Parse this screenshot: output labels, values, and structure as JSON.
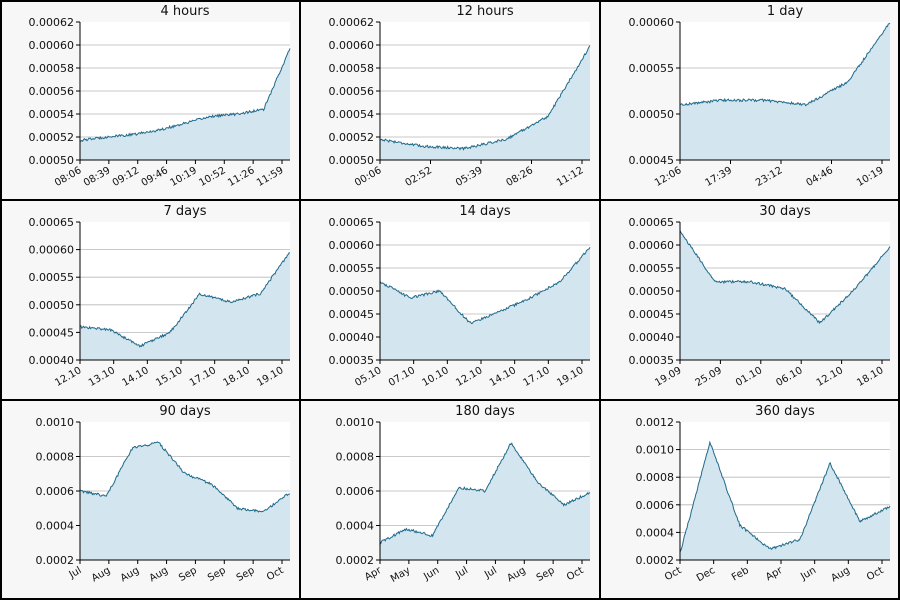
{
  "colors": {
    "line": "#1f6a8a",
    "fill": "#d3e5ee",
    "grid": "#b8b8b8",
    "plot_bg": "#ffffff",
    "panel_bg": "#f7f7f7",
    "frame": "#000000"
  },
  "chart_data": [
    {
      "type": "area",
      "title": "4 hours",
      "ylim": [
        0.0005,
        0.00062
      ],
      "yticks": [
        "0.00050",
        "0.00052",
        "0.00054",
        "0.00056",
        "0.00058",
        "0.00060",
        "0.00062"
      ],
      "xticks": [
        "08:06",
        "08:39",
        "09:12",
        "09:46",
        "10:19",
        "10:52",
        "11:26",
        "11:59"
      ],
      "x": [
        "08:06",
        "08:39",
        "09:12",
        "09:46",
        "10:19",
        "10:52",
        "11:26",
        "11:59",
        "12:06"
      ],
      "values": [
        0.000517,
        0.00052,
        0.000522,
        0.000526,
        0.000532,
        0.000538,
        0.00054,
        0.000544,
        0.000597
      ]
    },
    {
      "type": "area",
      "title": "12 hours",
      "ylim": [
        0.0005,
        0.00062
      ],
      "yticks": [
        "0.00050",
        "0.00052",
        "0.00054",
        "0.00056",
        "0.00058",
        "0.00060",
        "0.00062"
      ],
      "xticks": [
        "00:06",
        "02:52",
        "05:39",
        "08:26",
        "11:12"
      ],
      "x": [
        "00:06",
        "02:52",
        "05:39",
        "08:26",
        "11:12",
        "12:06"
      ],
      "values": [
        0.000518,
        0.000512,
        0.00051,
        0.000518,
        0.000538,
        0.000599
      ]
    },
    {
      "type": "area",
      "title": "1 day",
      "ylim": [
        0.00045,
        0.0006
      ],
      "yticks": [
        "0.00045",
        "0.00050",
        "0.00055",
        "0.00060"
      ],
      "xticks": [
        "12:06",
        "17:39",
        "23:12",
        "04:46",
        "10:19"
      ],
      "x": [
        "12:06",
        "17:39",
        "23:12",
        "04:46",
        "10:19",
        "12:06"
      ],
      "values": [
        0.00051,
        0.000515,
        0.000515,
        0.00051,
        0.000535,
        0.0006
      ]
    },
    {
      "type": "area",
      "title": "7 days",
      "ylim": [
        0.0004,
        0.00065
      ],
      "yticks": [
        "0.00040",
        "0.00045",
        "0.00050",
        "0.00055",
        "0.00060",
        "0.00065"
      ],
      "xticks": [
        "12.10",
        "13.10",
        "14.10",
        "15.10",
        "17.10",
        "18.10",
        "19.10"
      ],
      "x": [
        "12.10",
        "13.10",
        "14.10",
        "15.10",
        "17.10",
        "18.10",
        "19.10",
        "19.10"
      ],
      "values": [
        0.00046,
        0.000455,
        0.000425,
        0.00045,
        0.00052,
        0.000505,
        0.00052,
        0.000595
      ]
    },
    {
      "type": "area",
      "title": "14 days",
      "ylim": [
        0.00035,
        0.00065
      ],
      "yticks": [
        "0.00035",
        "0.00040",
        "0.00045",
        "0.00050",
        "0.00055",
        "0.00060",
        "0.00065"
      ],
      "xticks": [
        "05.10",
        "07.10",
        "10.10",
        "12.10",
        "14.10",
        "17.10",
        "19.10"
      ],
      "x": [
        "05.10",
        "07.10",
        "10.10",
        "12.10",
        "14.10",
        "17.10",
        "19.10",
        "19.10"
      ],
      "values": [
        0.00052,
        0.000485,
        0.0005,
        0.00043,
        0.000455,
        0.000485,
        0.00052,
        0.000595
      ]
    },
    {
      "type": "area",
      "title": "30 days",
      "ylim": [
        0.00035,
        0.00065
      ],
      "yticks": [
        "0.00035",
        "0.00040",
        "0.00045",
        "0.00050",
        "0.00055",
        "0.00060",
        "0.00065"
      ],
      "xticks": [
        "19.09",
        "25.09",
        "01.10",
        "06.10",
        "12.10",
        "18.10"
      ],
      "x": [
        "19.09",
        "25.09",
        "01.10",
        "06.10",
        "12.10",
        "18.10",
        "19.10"
      ],
      "values": [
        0.00063,
        0.00052,
        0.00052,
        0.000505,
        0.00043,
        0.000505,
        0.000595
      ]
    },
    {
      "type": "area",
      "title": "90 days",
      "ylim": [
        0.0002,
        0.001
      ],
      "yticks": [
        "0.0002",
        "0.0004",
        "0.0006",
        "0.0008",
        "0.0010"
      ],
      "xticks": [
        "Jul",
        "Aug",
        "Aug",
        "Aug",
        "Sep",
        "Sep",
        "Sep",
        "Oct"
      ],
      "x": [
        "Jul",
        "Aug",
        "Aug",
        "Aug",
        "Sep",
        "Sep",
        "Sep",
        "Oct",
        "Oct"
      ],
      "values": [
        0.0006,
        0.00057,
        0.00085,
        0.00088,
        0.0007,
        0.00064,
        0.0005,
        0.00048,
        0.00059
      ]
    },
    {
      "type": "area",
      "title": "180 days",
      "ylim": [
        0.0002,
        0.001
      ],
      "yticks": [
        "0.0002",
        "0.0004",
        "0.0006",
        "0.0008",
        "0.0010"
      ],
      "xticks": [
        "Apr",
        "May",
        "Jun",
        "Jul",
        "Jul",
        "Aug",
        "Sep",
        "Oct"
      ],
      "x": [
        "Apr",
        "May",
        "Jun",
        "Jul",
        "Jul",
        "Aug",
        "Sep",
        "Oct",
        "Oct"
      ],
      "values": [
        0.0003,
        0.00038,
        0.00034,
        0.00062,
        0.0006,
        0.00088,
        0.00065,
        0.00052,
        0.00059
      ]
    },
    {
      "type": "area",
      "title": "360 days",
      "ylim": [
        0.0002,
        0.0012
      ],
      "yticks": [
        "0.0002",
        "0.0004",
        "0.0006",
        "0.0008",
        "0.0010",
        "0.0012"
      ],
      "xticks": [
        "Oct",
        "Dec",
        "Feb",
        "Apr",
        "Jun",
        "Aug",
        "Oct"
      ],
      "x": [
        "Oct",
        "Dec",
        "Feb",
        "Apr",
        "Jun",
        "Aug",
        "Oct",
        "Oct"
      ],
      "values": [
        0.00025,
        0.00105,
        0.00045,
        0.00028,
        0.00035,
        0.0009,
        0.00048,
        0.00059
      ]
    }
  ]
}
